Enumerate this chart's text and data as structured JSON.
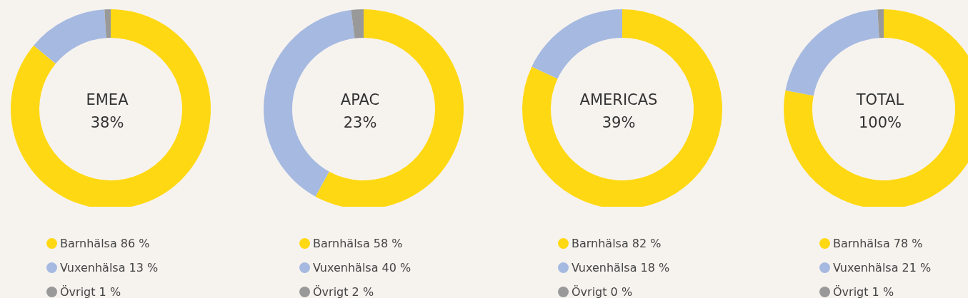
{
  "chart_data": [
    {
      "type": "donut",
      "title": "EMEA",
      "subtitle": "38%",
      "categories": [
        "Barnhälsa",
        "Vuxenhälsa",
        "Övrigt"
      ],
      "values": [
        86,
        13,
        1
      ],
      "value_labels": [
        "86 %",
        "13 %",
        "1 %"
      ],
      "colors": [
        "#ffd814",
        "#a6b9e0",
        "#999999"
      ],
      "legend": "bottom"
    },
    {
      "type": "donut",
      "title": "APAC",
      "subtitle": "23%",
      "categories": [
        "Barnhälsa",
        "Vuxenhälsa",
        "Övrigt"
      ],
      "values": [
        58,
        40,
        2
      ],
      "value_labels": [
        "58 %",
        "40 %",
        "2 %"
      ],
      "colors": [
        "#ffd814",
        "#a6b9e0",
        "#999999"
      ],
      "legend": "bottom"
    },
    {
      "type": "donut",
      "title": "AMERICAS",
      "subtitle": "39%",
      "categories": [
        "Barnhälsa",
        "Vuxenhälsa",
        "Övrigt"
      ],
      "values": [
        82,
        18,
        0
      ],
      "value_labels": [
        "82 %",
        "18 %",
        "0 %"
      ],
      "colors": [
        "#ffd814",
        "#a6b9e0",
        "#999999"
      ],
      "legend": "bottom"
    },
    {
      "type": "donut",
      "title": "TOTAL",
      "subtitle": "100%",
      "categories": [
        "Barnhälsa",
        "Vuxenhälsa",
        "Övrigt"
      ],
      "values": [
        78,
        21,
        1
      ],
      "value_labels": [
        "78 %",
        "21 %",
        "1 %"
      ],
      "colors": [
        "#ffd814",
        "#a6b9e0",
        "#999999"
      ],
      "legend": "bottom"
    }
  ]
}
